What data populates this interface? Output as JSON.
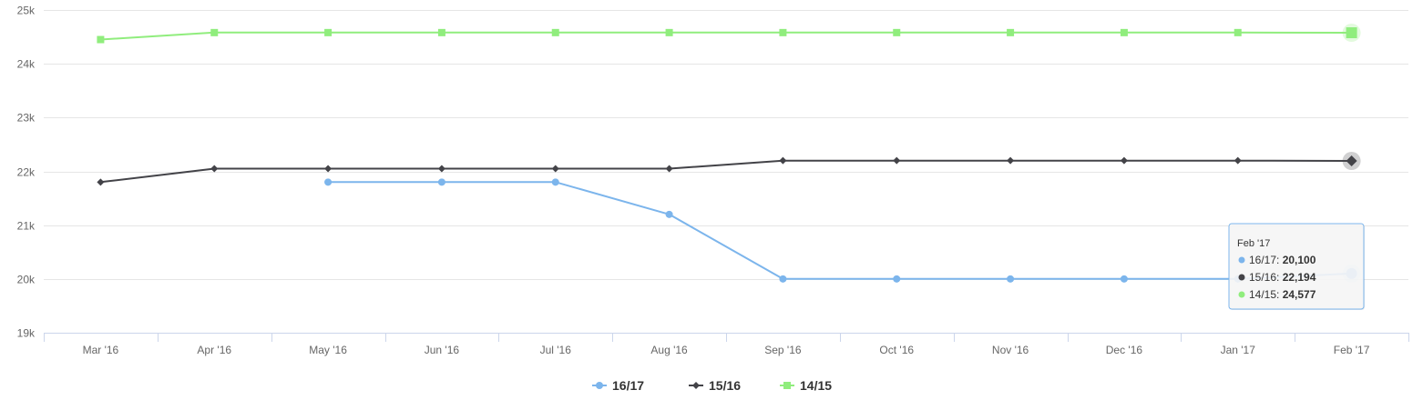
{
  "chart_data": {
    "type": "line",
    "categories": [
      "Mar '16",
      "Apr '16",
      "May '16",
      "Jun '16",
      "Jul '16",
      "Aug '16",
      "Sep '16",
      "Oct '16",
      "Nov '16",
      "Dec '16",
      "Jan '17",
      "Feb '17"
    ],
    "ylim": [
      19000,
      25000
    ],
    "yticks": [
      {
        "value": 19000,
        "label": "19k"
      },
      {
        "value": 20000,
        "label": "20k"
      },
      {
        "value": 21000,
        "label": "21k"
      },
      {
        "value": 22000,
        "label": "22k"
      },
      {
        "value": 23000,
        "label": "23k"
      },
      {
        "value": 24000,
        "label": "24k"
      },
      {
        "value": 25000,
        "label": "25k"
      }
    ],
    "grid": true,
    "legend": "bottom-center",
    "series": [
      {
        "name": "16/17",
        "color": "#7cb5ec",
        "marker": "circle",
        "values": [
          null,
          null,
          21800,
          21800,
          21800,
          21200,
          20000,
          20000,
          20000,
          20000,
          20000,
          20100
        ]
      },
      {
        "name": "15/16",
        "color": "#434348",
        "marker": "diamond",
        "values": [
          21800,
          22050,
          22050,
          22050,
          22050,
          22050,
          22200,
          22200,
          22200,
          22200,
          22200,
          22194
        ]
      },
      {
        "name": "14/15",
        "color": "#90ed7d",
        "marker": "square",
        "values": [
          24450,
          24580,
          24580,
          24580,
          24580,
          24580,
          24580,
          24580,
          24580,
          24580,
          24580,
          24577
        ]
      }
    ],
    "tooltip": {
      "header": "Feb '17",
      "rows": [
        {
          "series": "16/17",
          "value": "20,100"
        },
        {
          "series": "15/16",
          "value": "22,194"
        },
        {
          "series": "14/15",
          "value": "24,577"
        }
      ]
    }
  }
}
